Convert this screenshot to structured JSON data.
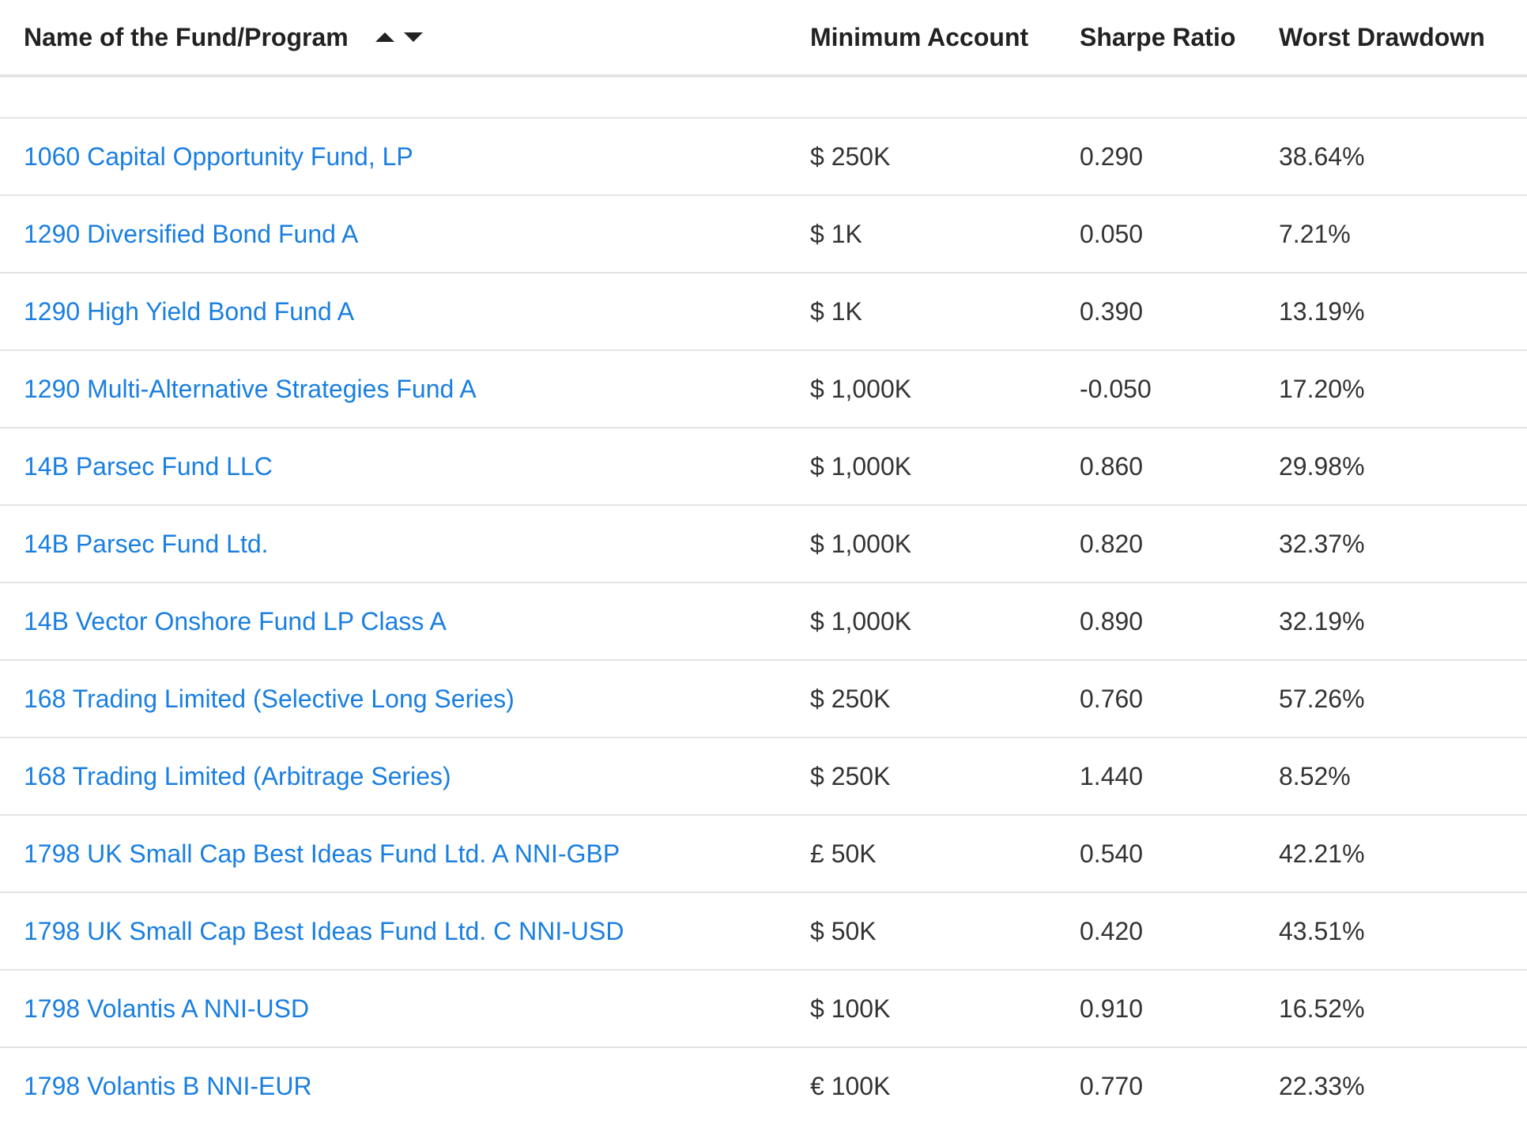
{
  "table": {
    "headers": {
      "name": "Name of the Fund/Program",
      "min_account": "Minimum Account",
      "sharpe": "Sharpe Ratio",
      "drawdown": "Worst Drawdown"
    },
    "sort_icons": [
      "sort-ascending-icon",
      "sort-descending-icon"
    ],
    "rows": [
      {
        "name": "1060 Capital Opportunity Fund, LP",
        "min_account": "$ 250K",
        "sharpe": "0.290",
        "drawdown": "38.64%"
      },
      {
        "name": "1290 Diversified Bond Fund A",
        "min_account": "$ 1K",
        "sharpe": "0.050",
        "drawdown": "7.21%"
      },
      {
        "name": "1290 High Yield Bond Fund A",
        "min_account": "$ 1K",
        "sharpe": "0.390",
        "drawdown": "13.19%"
      },
      {
        "name": "1290 Multi-Alternative Strategies Fund A",
        "min_account": "$ 1,000K",
        "sharpe": "-0.050",
        "drawdown": "17.20%"
      },
      {
        "name": "14B Parsec Fund LLC",
        "min_account": "$ 1,000K",
        "sharpe": "0.860",
        "drawdown": "29.98%"
      },
      {
        "name": "14B Parsec Fund Ltd.",
        "min_account": "$ 1,000K",
        "sharpe": "0.820",
        "drawdown": "32.37%"
      },
      {
        "name": "14B Vector Onshore Fund LP Class A",
        "min_account": "$ 1,000K",
        "sharpe": "0.890",
        "drawdown": "32.19%"
      },
      {
        "name": "168 Trading Limited (Selective Long Series)",
        "min_account": "$ 250K",
        "sharpe": "0.760",
        "drawdown": "57.26%"
      },
      {
        "name": "168 Trading Limited (Arbitrage Series)",
        "min_account": "$ 250K",
        "sharpe": "1.440",
        "drawdown": "8.52%"
      },
      {
        "name": "1798 UK Small Cap Best Ideas Fund Ltd. A NNI-GBP",
        "min_account": "£ 50K",
        "sharpe": "0.540",
        "drawdown": "42.21%"
      },
      {
        "name": "1798 UK Small Cap Best Ideas Fund Ltd. C NNI-USD",
        "min_account": "$ 50K",
        "sharpe": "0.420",
        "drawdown": "43.51%"
      },
      {
        "name": "1798 Volantis A NNI-USD",
        "min_account": "$ 100K",
        "sharpe": "0.910",
        "drawdown": "16.52%"
      },
      {
        "name": "1798 Volantis B NNI-EUR",
        "min_account": "€ 100K",
        "sharpe": "0.770",
        "drawdown": "22.33%"
      }
    ]
  },
  "colors": {
    "link": "#1a7fe0",
    "text": "#333333",
    "header_text": "#222222",
    "divider": "#e4e4e4"
  }
}
